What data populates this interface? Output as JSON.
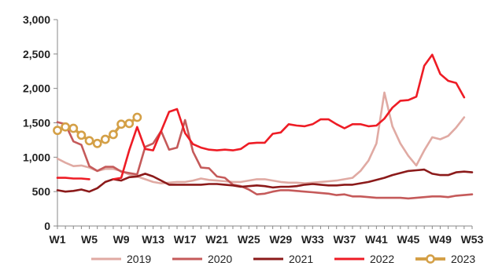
{
  "chart_data": {
    "type": "line",
    "title": "",
    "xlabel": "",
    "ylabel": "",
    "ylim": [
      0,
      3000
    ],
    "yticks": [
      "0",
      "500",
      "1,000",
      "1,500",
      "2,000",
      "2,500",
      "3,000"
    ],
    "ytick_values": [
      0,
      500,
      1000,
      1500,
      2000,
      2500,
      3000
    ],
    "xlim": [
      1,
      53
    ],
    "xticks": [
      "W1",
      "W5",
      "W9",
      "W13",
      "W17",
      "W21",
      "W25",
      "W29",
      "W33",
      "W37",
      "W41",
      "W45",
      "W49",
      "W53"
    ],
    "xtick_values": [
      1,
      5,
      9,
      13,
      17,
      21,
      25,
      29,
      33,
      37,
      41,
      45,
      49,
      53
    ],
    "grid": false,
    "legend_position": "bottom",
    "series": [
      {
        "name": "2019",
        "color": "#e0aaa3",
        "marker": false,
        "x": [
          1,
          2,
          3,
          4,
          5,
          6,
          7,
          8,
          9,
          10,
          11,
          12,
          13,
          14,
          15,
          16,
          17,
          18,
          19,
          20,
          21,
          22,
          23,
          24,
          25,
          26,
          27,
          28,
          29,
          30,
          31,
          32,
          33,
          34,
          35,
          36,
          37,
          38,
          39,
          40,
          41,
          42,
          43,
          44,
          45,
          46,
          47,
          48,
          49,
          50,
          51,
          52
        ],
        "values": [
          980,
          920,
          870,
          880,
          850,
          800,
          830,
          830,
          800,
          750,
          720,
          680,
          640,
          620,
          630,
          640,
          640,
          660,
          690,
          670,
          660,
          650,
          640,
          640,
          660,
          680,
          680,
          660,
          640,
          630,
          630,
          620,
          630,
          640,
          650,
          660,
          680,
          700,
          800,
          950,
          1200,
          1940,
          1450,
          1200,
          1020,
          880,
          1100,
          1290,
          1260,
          1310,
          1430,
          1580
        ]
      },
      {
        "name": "2020",
        "color": "#c55a5a",
        "marker": false,
        "x": [
          1,
          2,
          3,
          4,
          5,
          6,
          7,
          8,
          9,
          10,
          11,
          12,
          13,
          14,
          15,
          16,
          17,
          18,
          19,
          20,
          21,
          22,
          23,
          24,
          25,
          26,
          27,
          28,
          29,
          30,
          31,
          32,
          33,
          34,
          35,
          36,
          37,
          38,
          39,
          40,
          41,
          42,
          43,
          44,
          45,
          46,
          47,
          48,
          49,
          50,
          51,
          52,
          53
        ],
        "values": [
          1510,
          1480,
          1230,
          1180,
          870,
          800,
          860,
          860,
          790,
          770,
          750,
          1150,
          1200,
          1380,
          1110,
          1140,
          1540,
          1080,
          850,
          840,
          720,
          700,
          600,
          580,
          530,
          460,
          470,
          500,
          520,
          520,
          510,
          500,
          490,
          480,
          470,
          450,
          460,
          430,
          430,
          420,
          410,
          410,
          410,
          410,
          400,
          410,
          420,
          430,
          430,
          420,
          440,
          450,
          460
        ]
      },
      {
        "name": "2021",
        "color": "#8b1a1a",
        "marker": false,
        "x": [
          1,
          2,
          3,
          4,
          5,
          6,
          7,
          8,
          9,
          10,
          11,
          12,
          13,
          14,
          15,
          16,
          17,
          18,
          19,
          20,
          21,
          22,
          23,
          24,
          25,
          26,
          27,
          28,
          29,
          30,
          31,
          32,
          33,
          34,
          35,
          36,
          37,
          38,
          39,
          40,
          41,
          42,
          43,
          44,
          45,
          46,
          47,
          48,
          49,
          50,
          51,
          52,
          53
        ],
        "values": [
          520,
          500,
          510,
          530,
          500,
          550,
          640,
          680,
          660,
          710,
          720,
          760,
          720,
          660,
          600,
          600,
          600,
          600,
          600,
          610,
          610,
          600,
          590,
          570,
          580,
          590,
          580,
          560,
          570,
          570,
          580,
          600,
          610,
          600,
          590,
          590,
          600,
          600,
          620,
          640,
          670,
          700,
          740,
          770,
          800,
          810,
          820,
          760,
          740,
          740,
          780,
          790,
          780
        ]
      },
      {
        "name": "2022",
        "color": "#ee1c25",
        "marker": false,
        "x": [
          1,
          2,
          3,
          4,
          5,
          6,
          7,
          8,
          9,
          10,
          11,
          12,
          13,
          14,
          15,
          16,
          17,
          18,
          19,
          20,
          21,
          22,
          23,
          24,
          25,
          26,
          27,
          28,
          29,
          30,
          31,
          32,
          33,
          34,
          35,
          36,
          37,
          38,
          39,
          40,
          41,
          42,
          43,
          44,
          45,
          46,
          47,
          48,
          49,
          50,
          51,
          52,
          53
        ],
        "values": [
          700,
          700,
          690,
          690,
          680,
          null,
          null,
          680,
          700,
          1100,
          1440,
          1120,
          1100,
          1380,
          1660,
          1700,
          1350,
          1190,
          1140,
          1110,
          1100,
          1110,
          1100,
          1120,
          1200,
          1210,
          1210,
          1340,
          1360,
          1480,
          1460,
          1450,
          1480,
          1550,
          1550,
          1480,
          1420,
          1480,
          1480,
          1450,
          1460,
          1560,
          1720,
          1820,
          1830,
          1880,
          2330,
          2490,
          2210,
          2110,
          2080,
          1870,
          null
        ]
      },
      {
        "name": "2023",
        "color": "#d4a047",
        "marker": true,
        "x": [
          1,
          2,
          3,
          4,
          5,
          6,
          7,
          8,
          9,
          10,
          11
        ],
        "values": [
          1390,
          1440,
          1420,
          1320,
          1240,
          1200,
          1260,
          1330,
          1480,
          1490,
          1580
        ]
      }
    ]
  }
}
